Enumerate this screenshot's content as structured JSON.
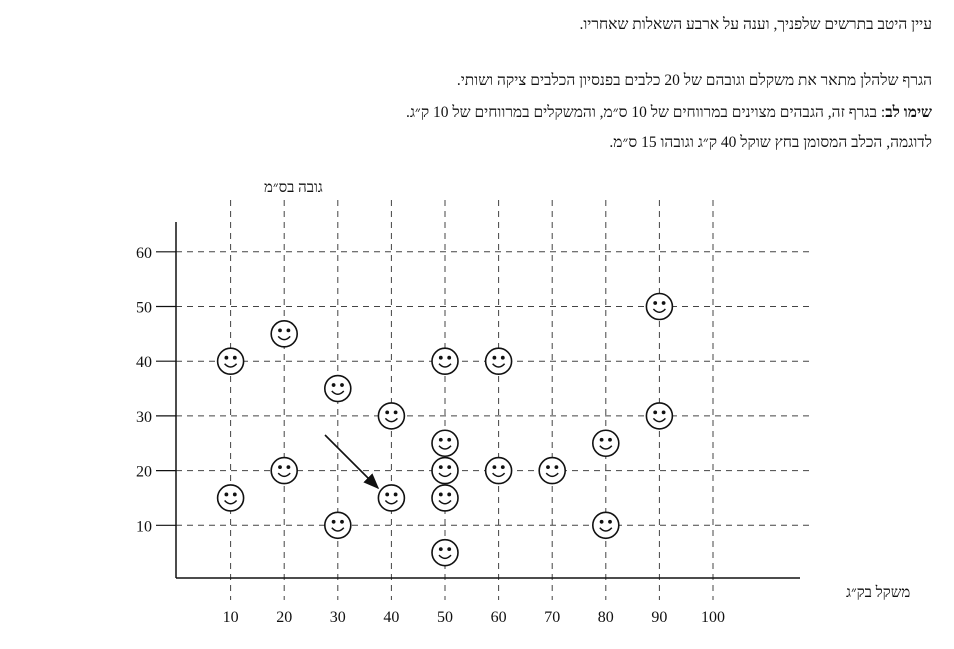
{
  "text": {
    "instruction": "עיין היטב בתרשים שלפניך, וענה על ארבע השאלות שאחריו.",
    "description": "הגרף שלהלן מתאר את משקלם וגובהם של 20 כלבים בפנסיון הכלבים ציקה ושותי.",
    "note_label": "שימו לב",
    "note_text": ": בגרף זה, הגבהים מצוינים במרווחים של 10 ס״מ, והמשקלים במרווחים של 10 ק״ג.",
    "example": "לדוגמה, הכלב המסומן בחץ שוקל 40 ק״ג וגובהו 15 ס״מ."
  },
  "chart_data": {
    "type": "scatter",
    "marker": "smiley-icon",
    "xlabel": "משקל בק״ג",
    "ylabel": "גובה בס״מ",
    "x_ticks": [
      10,
      20,
      30,
      40,
      50,
      60,
      70,
      80,
      90,
      100
    ],
    "y_ticks": [
      10,
      20,
      30,
      40,
      50,
      60
    ],
    "xlim": [
      0,
      100
    ],
    "ylim": [
      0,
      60
    ],
    "grid": true,
    "points": [
      {
        "x": 10,
        "y": 40
      },
      {
        "x": 10,
        "y": 15
      },
      {
        "x": 20,
        "y": 45
      },
      {
        "x": 20,
        "y": 20
      },
      {
        "x": 30,
        "y": 35
      },
      {
        "x": 30,
        "y": 10
      },
      {
        "x": 40,
        "y": 30
      },
      {
        "x": 40,
        "y": 15
      },
      {
        "x": 50,
        "y": 40
      },
      {
        "x": 50,
        "y": 25
      },
      {
        "x": 50,
        "y": 20
      },
      {
        "x": 50,
        "y": 15
      },
      {
        "x": 50,
        "y": 5
      },
      {
        "x": 60,
        "y": 40
      },
      {
        "x": 60,
        "y": 20
      },
      {
        "x": 70,
        "y": 20
      },
      {
        "x": 80,
        "y": 25
      },
      {
        "x": 80,
        "y": 10
      },
      {
        "x": 90,
        "y": 50
      },
      {
        "x": 90,
        "y": 30
      }
    ],
    "highlighted_point": {
      "x": 40,
      "y": 15
    }
  }
}
